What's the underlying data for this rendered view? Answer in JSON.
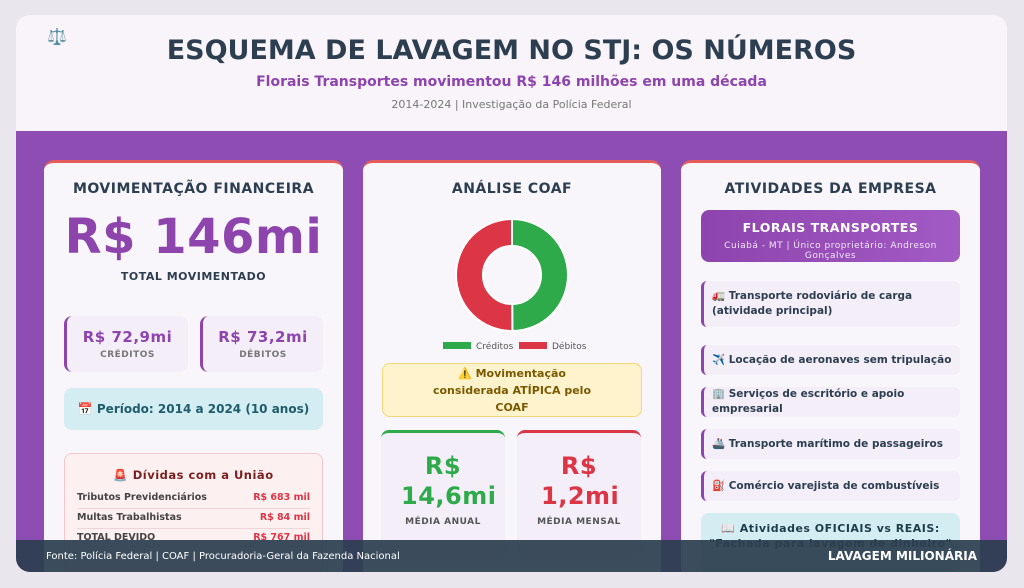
{
  "header": {
    "icon": "⚖️",
    "title": "ESQUEMA DE LAVAGEM NO STJ: OS NÚMEROS",
    "subtitle": "Florais Transportes movimentou R$ 146 milhões em uma década",
    "meta": "2014-2024 | Investigação da Polícia Federal"
  },
  "finance": {
    "title": "MOVIMENTAÇÃO FINANCEIRA",
    "total": "R$ 146mi",
    "total_label": "TOTAL MOVIMENTADO",
    "credits": {
      "value": "R$ 72,9mi",
      "label": "CRÉDITOS"
    },
    "debits": {
      "value": "R$ 73,2mi",
      "label": "DÉBITOS"
    },
    "period": "📅 Período: 2014 a 2024 (10 anos)",
    "debts": {
      "title": "🚨 Dívidas com a União",
      "rows": [
        [
          "Tributos Previdenciários",
          "R$ 683 mil"
        ],
        [
          "Multas Trabalhistas",
          "R$ 84 mil"
        ],
        [
          "TOTAL DEVIDO",
          "R$ 767 mil"
        ]
      ]
    }
  },
  "coaf": {
    "title": "ANÁLISE COAF",
    "donut": {
      "type": "pie",
      "series": [
        {
          "name": "Créditos",
          "color": "#2eaa4a",
          "value": 72.9
        },
        {
          "name": "Débitos",
          "color": "#dc3545",
          "value": 73.2
        }
      ]
    },
    "warning": "⚠️ Movimentação considerada ATÍPICA pelo COAF",
    "annual": {
      "value": "R$ 14,6mi",
      "label": "MÉDIA ANUAL"
    },
    "monthly": {
      "value": "R$ 1,2mi",
      "label": "MÉDIA MENSAL"
    }
  },
  "activities": {
    "title": "ATIVIDADES DA EMPRESA",
    "company": "FLORAIS TRANSPORTES",
    "company_info": "Cuiabá - MT | Único proprietário: Andreson Gonçalves",
    "items": [
      "🚛 Transporte rodoviário de carga (atividade principal)",
      "✈️ Locação de aeronaves sem tripulação",
      "🏢 Serviços de escritório e apoio empresarial",
      "🚢 Transporte marítimo de passageiros",
      "⛽ Comércio varejista de combustíveis"
    ],
    "note_title": "📖 Atividades OFICIAIS vs REAIS:",
    "note_text": "\"Fachada para lavagem de dinheiro\""
  },
  "footer": {
    "source": "Fonte: Polícia Federal | COAF | Procuradoria-Geral da Fazenda Nacional",
    "tag": "LAVAGEM MILIONÁRIA"
  }
}
